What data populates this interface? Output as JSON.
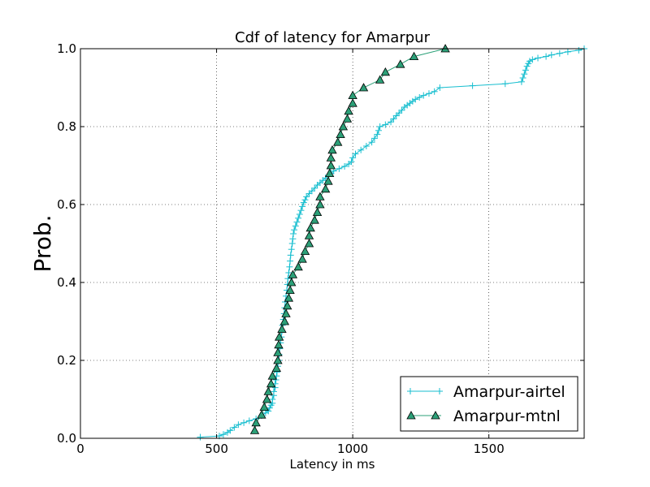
{
  "chart_data": {
    "type": "line",
    "title": "Cdf of latency for Amarpur",
    "xlabel": "Latency in ms",
    "ylabel": "Prob.",
    "xlim": [
      0,
      1850
    ],
    "ylim": [
      0,
      1.0
    ],
    "xticks": [
      0,
      500,
      1000,
      1500
    ],
    "yticks": [
      0.0,
      0.2,
      0.4,
      0.6,
      0.8,
      1.0
    ],
    "xtick_labels": [
      "0",
      "500",
      "1000",
      "1500"
    ],
    "ytick_labels": [
      "0.0",
      "0.2",
      "0.4",
      "0.6",
      "0.8",
      "1.0"
    ],
    "grid": true,
    "legend_position": "bottom-right",
    "series": [
      {
        "name": "Amarpur-airtel",
        "color": "#17becf",
        "marker": "plus",
        "x": [
          440,
          510,
          525,
          540,
          550,
          565,
          580,
          600,
          620,
          645,
          665,
          680,
          690,
          695,
          700,
          705,
          705,
          710,
          710,
          715,
          715,
          718,
          720,
          722,
          725,
          728,
          730,
          732,
          735,
          738,
          740,
          742,
          745,
          748,
          750,
          752,
          755,
          758,
          760,
          762,
          765,
          768,
          770,
          772,
          775,
          778,
          780,
          782,
          785,
          790,
          795,
          800,
          805,
          810,
          815,
          820,
          825,
          830,
          840,
          850,
          860,
          870,
          880,
          890,
          900,
          910,
          920,
          930,
          950,
          970,
          985,
          995,
          1000,
          1010,
          1030,
          1050,
          1070,
          1080,
          1090,
          1095,
          1100,
          1120,
          1140,
          1150,
          1160,
          1170,
          1180,
          1190,
          1200,
          1210,
          1220,
          1230,
          1245,
          1260,
          1280,
          1300,
          1320,
          1440,
          1560,
          1620,
          1625,
          1630,
          1635,
          1640,
          1645,
          1650,
          1660,
          1680,
          1710,
          1730,
          1760,
          1790,
          1830,
          1850
        ],
        "y": [
          0.003,
          0.006,
          0.01,
          0.015,
          0.02,
          0.028,
          0.035,
          0.04,
          0.045,
          0.05,
          0.058,
          0.065,
          0.07,
          0.078,
          0.085,
          0.09,
          0.1,
          0.11,
          0.12,
          0.13,
          0.14,
          0.15,
          0.16,
          0.17,
          0.185,
          0.2,
          0.215,
          0.23,
          0.245,
          0.26,
          0.275,
          0.29,
          0.305,
          0.32,
          0.335,
          0.35,
          0.365,
          0.38,
          0.395,
          0.41,
          0.425,
          0.44,
          0.455,
          0.47,
          0.485,
          0.5,
          0.512,
          0.525,
          0.535,
          0.545,
          0.555,
          0.565,
          0.575,
          0.585,
          0.595,
          0.605,
          0.612,
          0.62,
          0.628,
          0.635,
          0.642,
          0.65,
          0.656,
          0.662,
          0.668,
          0.674,
          0.68,
          0.686,
          0.692,
          0.698,
          0.704,
          0.71,
          0.72,
          0.73,
          0.74,
          0.75,
          0.76,
          0.77,
          0.78,
          0.79,
          0.8,
          0.805,
          0.812,
          0.82,
          0.828,
          0.835,
          0.842,
          0.85,
          0.855,
          0.86,
          0.865,
          0.87,
          0.875,
          0.88,
          0.885,
          0.89,
          0.9,
          0.905,
          0.91,
          0.915,
          0.925,
          0.935,
          0.945,
          0.955,
          0.962,
          0.968,
          0.972,
          0.976,
          0.98,
          0.984,
          0.988,
          0.992,
          0.996,
          1.0
        ]
      },
      {
        "name": "Amarpur-mtnl",
        "color": "#2ca078",
        "marker": "triangle",
        "x": [
          640,
          645,
          665,
          675,
          685,
          690,
          700,
          705,
          720,
          725,
          725,
          728,
          730,
          740,
          750,
          755,
          760,
          765,
          770,
          775,
          780,
          800,
          815,
          825,
          840,
          840,
          845,
          860,
          870,
          880,
          880,
          900,
          910,
          915,
          920,
          920,
          925,
          945,
          955,
          965,
          980,
          985,
          1000,
          1000,
          1040,
          1100,
          1120,
          1175,
          1225,
          1340
        ],
        "y": [
          0.02,
          0.04,
          0.06,
          0.08,
          0.1,
          0.12,
          0.14,
          0.16,
          0.18,
          0.2,
          0.22,
          0.24,
          0.26,
          0.28,
          0.3,
          0.32,
          0.34,
          0.36,
          0.38,
          0.4,
          0.42,
          0.44,
          0.46,
          0.48,
          0.5,
          0.52,
          0.54,
          0.56,
          0.58,
          0.6,
          0.62,
          0.64,
          0.66,
          0.68,
          0.7,
          0.72,
          0.74,
          0.76,
          0.78,
          0.8,
          0.82,
          0.84,
          0.86,
          0.88,
          0.9,
          0.92,
          0.94,
          0.96,
          0.98,
          1.0
        ]
      }
    ]
  }
}
